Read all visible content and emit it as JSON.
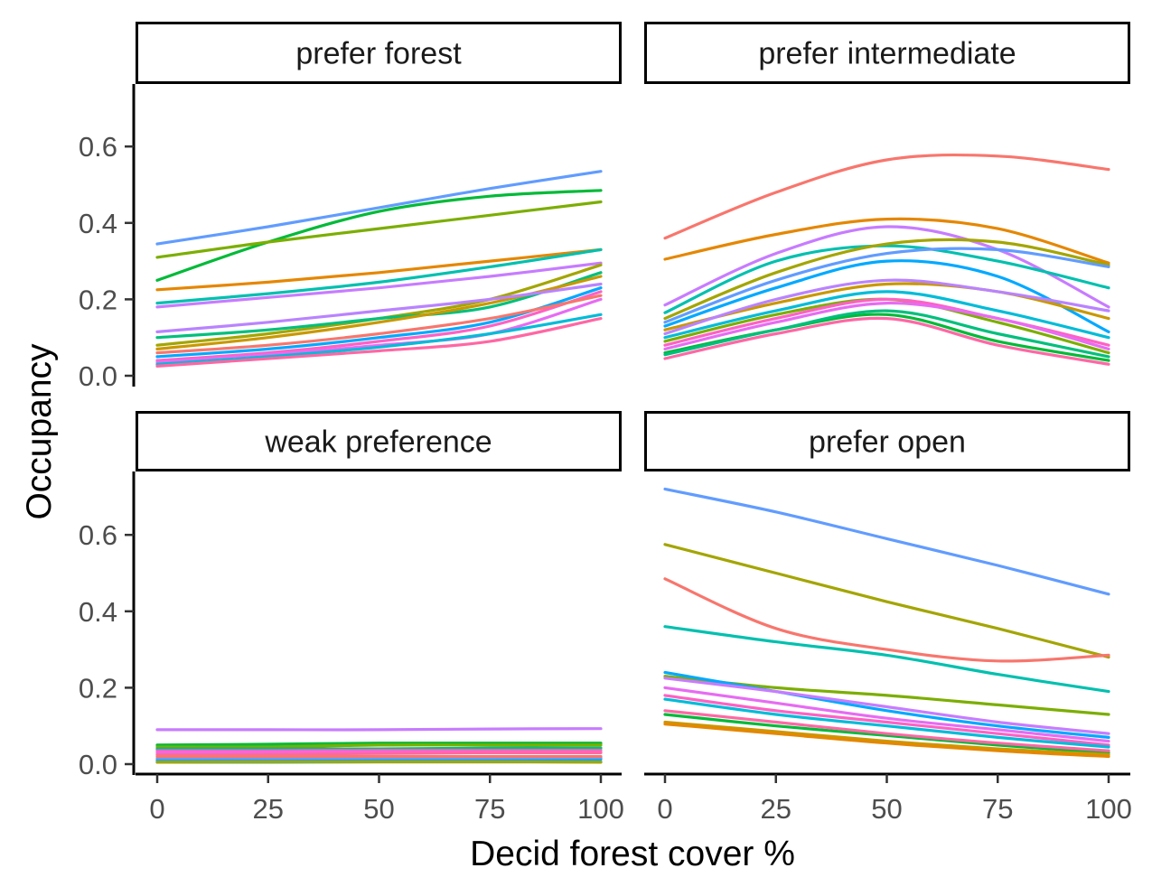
{
  "chart_data": {
    "type": "line",
    "xlabel": "Decid forest cover %",
    "ylabel": "Occupancy",
    "xlim": [
      0,
      100
    ],
    "ylim": [
      0,
      0.75
    ],
    "x_ticks": [
      0,
      25,
      50,
      75,
      100
    ],
    "x_tick_labels": [
      "0",
      "25",
      "50",
      "75",
      "100"
    ],
    "y_ticks": [
      0.0,
      0.2,
      0.4,
      0.6
    ],
    "y_tick_labels": [
      "0.0",
      "0.2",
      "0.4",
      "0.6"
    ],
    "grid": false,
    "legend": "none",
    "x": [
      0,
      25,
      50,
      75,
      100
    ],
    "panels": [
      {
        "title": "prefer forest",
        "series": [
          {
            "color": "#619CFF",
            "values": [
              0.345,
              0.39,
              0.44,
              0.49,
              0.535
            ]
          },
          {
            "color": "#00BA38",
            "values": [
              0.25,
              0.35,
              0.43,
              0.47,
              0.485
            ]
          },
          {
            "color": "#7CAE00",
            "values": [
              0.31,
              0.35,
              0.385,
              0.42,
              0.455
            ]
          },
          {
            "color": "#E58700",
            "values": [
              0.225,
              0.245,
              0.27,
              0.3,
              0.33
            ]
          },
          {
            "color": "#00C0AF",
            "values": [
              0.19,
              0.215,
              0.245,
              0.285,
              0.33
            ]
          },
          {
            "color": "#C77CFF",
            "values": [
              0.18,
              0.205,
              0.23,
              0.26,
              0.295
            ]
          },
          {
            "color": "#A3A500",
            "values": [
              0.08,
              0.11,
              0.15,
              0.2,
              0.29
            ]
          },
          {
            "color": "#00BF7D",
            "values": [
              0.1,
              0.12,
              0.15,
              0.18,
              0.27
            ]
          },
          {
            "color": "#C99800",
            "values": [
              0.07,
              0.1,
              0.14,
              0.19,
              0.26
            ]
          },
          {
            "color": "#B983FF",
            "values": [
              0.115,
              0.14,
              0.17,
              0.2,
              0.24
            ]
          },
          {
            "color": "#00A9FF",
            "values": [
              0.05,
              0.07,
              0.1,
              0.14,
              0.23
            ]
          },
          {
            "color": "#FF61C3",
            "values": [
              0.04,
              0.06,
              0.09,
              0.13,
              0.22
            ]
          },
          {
            "color": "#F8766D",
            "values": [
              0.06,
              0.08,
              0.11,
              0.15,
              0.21
            ]
          },
          {
            "color": "#E76BF3",
            "values": [
              0.035,
              0.055,
              0.08,
              0.11,
              0.2
            ]
          },
          {
            "color": "#00BCD8",
            "values": [
              0.03,
              0.05,
              0.075,
              0.11,
              0.16
            ]
          },
          {
            "color": "#FF67A4",
            "values": [
              0.025,
              0.045,
              0.065,
              0.09,
              0.15
            ]
          }
        ]
      },
      {
        "title": "prefer intermediate",
        "series": [
          {
            "color": "#F8766D",
            "values": [
              0.36,
              0.48,
              0.565,
              0.575,
              0.54
            ]
          },
          {
            "color": "#E58700",
            "values": [
              0.305,
              0.37,
              0.41,
              0.385,
              0.295
            ]
          },
          {
            "color": "#C77CFF",
            "values": [
              0.185,
              0.32,
              0.39,
              0.33,
              0.18
            ]
          },
          {
            "color": "#00C0AF",
            "values": [
              0.165,
              0.3,
              0.34,
              0.3,
              0.23
            ]
          },
          {
            "color": "#A3A500",
            "values": [
              0.15,
              0.27,
              0.345,
              0.35,
              0.29
            ]
          },
          {
            "color": "#619CFF",
            "values": [
              0.14,
              0.25,
              0.32,
              0.33,
              0.285
            ]
          },
          {
            "color": "#00A9FF",
            "values": [
              0.13,
              0.23,
              0.3,
              0.26,
              0.115
            ]
          },
          {
            "color": "#C99800",
            "values": [
              0.12,
              0.19,
              0.24,
              0.22,
              0.15
            ]
          },
          {
            "color": "#B983FF",
            "values": [
              0.11,
              0.2,
              0.25,
              0.22,
              0.17
            ]
          },
          {
            "color": "#00BCD8",
            "values": [
              0.1,
              0.17,
              0.22,
              0.17,
              0.1
            ]
          },
          {
            "color": "#7CAE00",
            "values": [
              0.09,
              0.16,
              0.2,
              0.14,
              0.06
            ]
          },
          {
            "color": "#FF61C3",
            "values": [
              0.08,
              0.15,
              0.2,
              0.15,
              0.08
            ]
          },
          {
            "color": "#E76BF3",
            "values": [
              0.07,
              0.14,
              0.19,
              0.15,
              0.07
            ]
          },
          {
            "color": "#00BA38",
            "values": [
              0.06,
              0.12,
              0.16,
              0.09,
              0.04
            ]
          },
          {
            "color": "#FF67A4",
            "values": [
              0.045,
              0.11,
              0.15,
              0.08,
              0.03
            ]
          },
          {
            "color": "#00BF7D",
            "values": [
              0.055,
              0.12,
              0.17,
              0.11,
              0.05
            ]
          }
        ]
      },
      {
        "title": "weak preference",
        "series": [
          {
            "color": "#C77CFF",
            "values": [
              0.09,
              0.09,
              0.09,
              0.092,
              0.093
            ]
          },
          {
            "color": "#00BA38",
            "values": [
              0.05,
              0.052,
              0.055,
              0.055,
              0.055
            ]
          },
          {
            "color": "#7CAE00",
            "values": [
              0.045,
              0.045,
              0.05,
              0.05,
              0.05
            ]
          },
          {
            "color": "#00BF7D",
            "values": [
              0.04,
              0.04,
              0.04,
              0.042,
              0.042
            ]
          },
          {
            "color": "#FF61C3",
            "values": [
              0.035,
              0.035,
              0.036,
              0.036,
              0.036
            ]
          },
          {
            "color": "#E76BF3",
            "values": [
              0.03,
              0.03,
              0.03,
              0.03,
              0.03
            ]
          },
          {
            "color": "#FF67A4",
            "values": [
              0.025,
              0.026,
              0.028,
              0.03,
              0.03
            ]
          },
          {
            "color": "#00A9FF",
            "values": [
              0.01,
              0.012,
              0.012,
              0.013,
              0.013
            ]
          },
          {
            "color": "#00BCD8",
            "values": [
              0.005,
              0.005,
              0.006,
              0.006,
              0.006
            ]
          },
          {
            "color": "#619CFF",
            "values": [
              0.015,
              0.015,
              0.016,
              0.016,
              0.017
            ]
          },
          {
            "color": "#F8766D",
            "values": [
              0.02,
              0.02,
              0.02,
              0.02,
              0.02
            ]
          },
          {
            "color": "#A3A500",
            "values": [
              0.005,
              0.006,
              0.006,
              0.006,
              0.005
            ]
          }
        ]
      },
      {
        "title": "prefer open",
        "series": [
          {
            "color": "#619CFF",
            "values": [
              0.72,
              0.66,
              0.59,
              0.52,
              0.445
            ]
          },
          {
            "color": "#A3A500",
            "values": [
              0.575,
              0.5,
              0.425,
              0.355,
              0.28
            ]
          },
          {
            "color": "#F8766D",
            "values": [
              0.485,
              0.355,
              0.3,
              0.27,
              0.285
            ]
          },
          {
            "color": "#00C0AF",
            "values": [
              0.36,
              0.32,
              0.285,
              0.235,
              0.19
            ]
          },
          {
            "color": "#7CAE00",
            "values": [
              0.23,
              0.2,
              0.18,
              0.155,
              0.13
            ]
          },
          {
            "color": "#00A9FF",
            "values": [
              0.24,
              0.19,
              0.14,
              0.1,
              0.07
            ]
          },
          {
            "color": "#C77CFF",
            "values": [
              0.225,
              0.19,
              0.15,
              0.11,
              0.08
            ]
          },
          {
            "color": "#E76BF3",
            "values": [
              0.2,
              0.16,
              0.12,
              0.09,
              0.06
            ]
          },
          {
            "color": "#FF61C3",
            "values": [
              0.18,
              0.14,
              0.11,
              0.08,
              0.05
            ]
          },
          {
            "color": "#00BCD8",
            "values": [
              0.17,
              0.13,
              0.1,
              0.07,
              0.045
            ]
          },
          {
            "color": "#00BA38",
            "values": [
              0.13,
              0.1,
              0.075,
              0.05,
              0.03
            ]
          },
          {
            "color": "#C99800",
            "values": [
              0.11,
              0.085,
              0.06,
              0.04,
              0.025
            ]
          },
          {
            "color": "#E58700",
            "values": [
              0.105,
              0.08,
              0.055,
              0.035,
              0.02
            ]
          },
          {
            "color": "#FF67A4",
            "values": [
              0.14,
              0.11,
              0.08,
              0.055,
              0.035
            ]
          }
        ]
      }
    ]
  }
}
